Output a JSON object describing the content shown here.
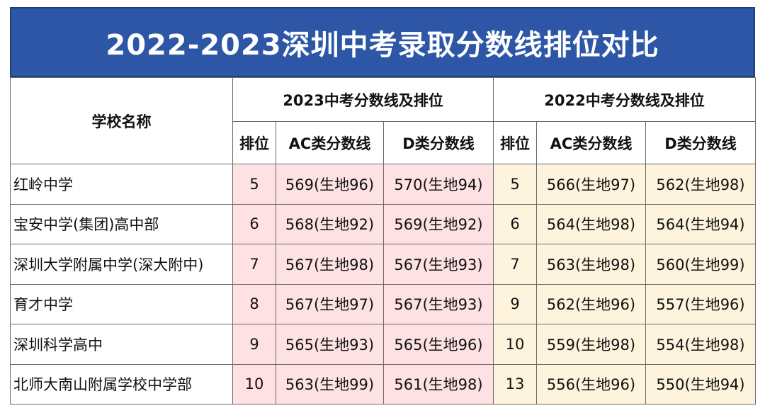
{
  "title": "2022-2023深圳中考录取分数线排位对比",
  "header": {
    "school_name": "学校名称",
    "group_2023": "2023中考分数线及排位",
    "group_2022": "2022中考分数线及排位",
    "rank": "排位",
    "ac_line": "AC类分数线",
    "d_line": "D类分数线"
  },
  "colors": {
    "title_bg": "#2d57a6",
    "header_text": "#e30000",
    "bg_2023": "#fde1e3",
    "bg_2022": "#fef4dd"
  },
  "rows": [
    {
      "school": "红岭中学",
      "rank_2023": "5",
      "ac_2023": "569(生地96)",
      "d_2023": "570(生地94)",
      "rank_2022": "5",
      "ac_2022": "566(生地97)",
      "d_2022": "562(生地98)"
    },
    {
      "school": "宝安中学(集团)高中部",
      "rank_2023": "6",
      "ac_2023": "568(生地92)",
      "d_2023": "569(生地92)",
      "rank_2022": "6",
      "ac_2022": "564(生地98)",
      "d_2022": "564(生地94)"
    },
    {
      "school": "深圳大学附属中学(深大附中)",
      "rank_2023": "7",
      "ac_2023": "567(生地98)",
      "d_2023": "567(生地93)",
      "rank_2022": "7",
      "ac_2022": "563(生地98)",
      "d_2022": "560(生地99)"
    },
    {
      "school": "育才中学",
      "rank_2023": "8",
      "ac_2023": "567(生地97)",
      "d_2023": "567(生地93)",
      "rank_2022": "9",
      "ac_2022": "562(生地96)",
      "d_2022": "557(生地96)"
    },
    {
      "school": "深圳科学高中",
      "rank_2023": "9",
      "ac_2023": "565(生地93)",
      "d_2023": "565(生地96)",
      "rank_2022": "10",
      "ac_2022": "559(生地98)",
      "d_2022": "554(生地98)"
    },
    {
      "school": "北师大南山附属学校中学部",
      "rank_2023": "10",
      "ac_2023": "563(生地99)",
      "d_2023": "561(生地98)",
      "rank_2022": "13",
      "ac_2022": "556(生地96)",
      "d_2022": "550(生地94)"
    }
  ]
}
